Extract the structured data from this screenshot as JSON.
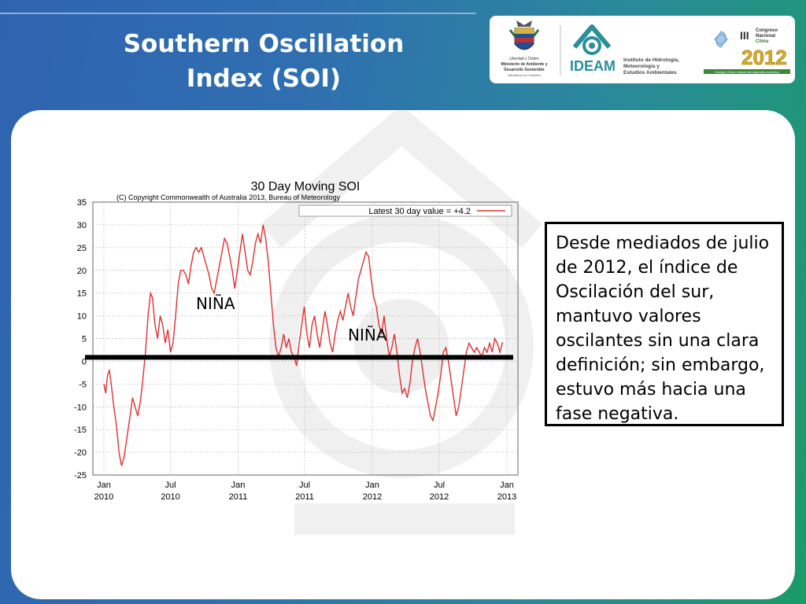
{
  "slide": {
    "title": "Southern Oscillation Index (SOI)",
    "body_text": "Desde mediados de julio de 2012, el índice de Oscilación del sur, mantuvo valores oscilantes sin una clara definición; sin embargo, estuvo más hacia una fase negativa.",
    "colors": {
      "gradient_left": "#2f63b0",
      "gradient_right": "#1b9a6a",
      "series_line": "#e03030",
      "zero_line": "#000000"
    }
  },
  "logos": {
    "ministry_lines": [
      "Libertad y Orden",
      "Ministerio de Ambiente y",
      "Desarrollo Sostenible",
      "República de Colombia"
    ],
    "ideam_name": "IDEAM",
    "ideam_full": [
      "Instituto de Hidrología,",
      "Meteorología y",
      "Estudios Ambientales"
    ],
    "congress_lines": [
      "Congreso",
      "Nacional",
      "Clima"
    ],
    "congress_roman": "III",
    "congress_year": "2012",
    "congress_tagline": "Energía y Clima: motores del desarrollo económico"
  },
  "chart_data": {
    "type": "line",
    "title": "30 Day Moving SOI",
    "subtitle": "(C) Copyright Commonwealth of Australia 2013, Bureau of Meteorology",
    "legend": {
      "label": "Latest 30 day value = +4.2",
      "placement": "top-right"
    },
    "xlabel": "",
    "ylabel": "",
    "ylim": [
      -25,
      35
    ],
    "yticks": [
      "35",
      "30",
      "25",
      "20",
      "15",
      "10",
      "5",
      "0",
      "-5",
      "-10",
      "-15",
      "-20",
      "-25"
    ],
    "xlim": [
      "2010-01-01",
      "2013-01-01"
    ],
    "xticks": [
      {
        "month": "Jan",
        "year": "2010",
        "date": "2010-01-01"
      },
      {
        "month": "Jul",
        "year": "2010",
        "date": "2010-07-01"
      },
      {
        "month": "Jan",
        "year": "2011",
        "date": "2011-01-01"
      },
      {
        "month": "Jul",
        "year": "2011",
        "date": "2011-07-01"
      },
      {
        "month": "Jan",
        "year": "2012",
        "date": "2012-01-01"
      },
      {
        "month": "Jul",
        "year": "2012",
        "date": "2012-07-01"
      },
      {
        "month": "Jan",
        "year": "2013",
        "date": "2013-01-01"
      }
    ],
    "grid": true,
    "annotations": [
      "NIÑA",
      "NIÑA"
    ],
    "reference_line_y": 0,
    "series": [
      {
        "name": "30 Day Moving SOI",
        "points": [
          [
            "2010-01-01",
            -5
          ],
          [
            "2010-01-06",
            -7
          ],
          [
            "2010-01-11",
            -3
          ],
          [
            "2010-01-16",
            -2
          ],
          [
            "2010-01-21",
            -5
          ],
          [
            "2010-01-28",
            -10
          ],
          [
            "2010-02-04",
            -14
          ],
          [
            "2010-02-11",
            -20
          ],
          [
            "2010-02-18",
            -23
          ],
          [
            "2010-02-25",
            -21
          ],
          [
            "2010-03-06",
            -16
          ],
          [
            "2010-03-13",
            -12
          ],
          [
            "2010-03-20",
            -8
          ],
          [
            "2010-03-27",
            -10
          ],
          [
            "2010-04-03",
            -12
          ],
          [
            "2010-04-10",
            -9
          ],
          [
            "2010-04-17",
            -4
          ],
          [
            "2010-04-24",
            2
          ],
          [
            "2010-05-01",
            10
          ],
          [
            "2010-05-08",
            15
          ],
          [
            "2010-05-13",
            14
          ],
          [
            "2010-05-20",
            8
          ],
          [
            "2010-05-27",
            5
          ],
          [
            "2010-06-03",
            10
          ],
          [
            "2010-06-10",
            8
          ],
          [
            "2010-06-17",
            4
          ],
          [
            "2010-06-24",
            7
          ],
          [
            "2010-07-01",
            2
          ],
          [
            "2010-07-08",
            4
          ],
          [
            "2010-07-15",
            10
          ],
          [
            "2010-07-22",
            17
          ],
          [
            "2010-07-29",
            20
          ],
          [
            "2010-08-05",
            20
          ],
          [
            "2010-08-12",
            19
          ],
          [
            "2010-08-19",
            17
          ],
          [
            "2010-08-26",
            21
          ],
          [
            "2010-09-02",
            24
          ],
          [
            "2010-09-09",
            25
          ],
          [
            "2010-09-16",
            24
          ],
          [
            "2010-09-23",
            25
          ],
          [
            "2010-09-30",
            23
          ],
          [
            "2010-10-07",
            21
          ],
          [
            "2010-10-14",
            19
          ],
          [
            "2010-10-21",
            16
          ],
          [
            "2010-10-28",
            15
          ],
          [
            "2010-11-04",
            18
          ],
          [
            "2010-11-11",
            21
          ],
          [
            "2010-11-18",
            24
          ],
          [
            "2010-11-25",
            27
          ],
          [
            "2010-12-02",
            26
          ],
          [
            "2010-12-09",
            23
          ],
          [
            "2010-12-16",
            20
          ],
          [
            "2010-12-23",
            16
          ],
          [
            "2010-12-30",
            20
          ],
          [
            "2011-01-06",
            24
          ],
          [
            "2011-01-13",
            28
          ],
          [
            "2011-01-20",
            24
          ],
          [
            "2011-01-27",
            20
          ],
          [
            "2011-02-03",
            19
          ],
          [
            "2011-02-10",
            22
          ],
          [
            "2011-02-17",
            26
          ],
          [
            "2011-02-24",
            28
          ],
          [
            "2011-03-03",
            26
          ],
          [
            "2011-03-10",
            30
          ],
          [
            "2011-03-17",
            27
          ],
          [
            "2011-03-24",
            22
          ],
          [
            "2011-03-31",
            15
          ],
          [
            "2011-04-07",
            8
          ],
          [
            "2011-04-14",
            3
          ],
          [
            "2011-04-21",
            1
          ],
          [
            "2011-04-28",
            3
          ],
          [
            "2011-05-05",
            6
          ],
          [
            "2011-05-12",
            3
          ],
          [
            "2011-05-19",
            5
          ],
          [
            "2011-05-26",
            2
          ],
          [
            "2011-06-02",
            1
          ],
          [
            "2011-06-09",
            -1
          ],
          [
            "2011-06-16",
            4
          ],
          [
            "2011-06-23",
            8
          ],
          [
            "2011-06-30",
            12
          ],
          [
            "2011-07-07",
            6
          ],
          [
            "2011-07-14",
            3
          ],
          [
            "2011-07-21",
            8
          ],
          [
            "2011-07-28",
            10
          ],
          [
            "2011-08-04",
            6
          ],
          [
            "2011-08-11",
            3
          ],
          [
            "2011-08-18",
            7
          ],
          [
            "2011-08-25",
            11
          ],
          [
            "2011-09-01",
            8
          ],
          [
            "2011-09-08",
            4
          ],
          [
            "2011-09-15",
            2
          ],
          [
            "2011-09-22",
            6
          ],
          [
            "2011-09-29",
            9
          ],
          [
            "2011-10-06",
            11
          ],
          [
            "2011-10-13",
            9
          ],
          [
            "2011-10-20",
            12
          ],
          [
            "2011-10-27",
            15
          ],
          [
            "2011-11-03",
            12
          ],
          [
            "2011-11-10",
            10
          ],
          [
            "2011-11-17",
            14
          ],
          [
            "2011-11-24",
            18
          ],
          [
            "2011-12-01",
            20
          ],
          [
            "2011-12-08",
            22
          ],
          [
            "2011-12-15",
            24
          ],
          [
            "2011-12-22",
            23
          ],
          [
            "2011-12-29",
            18
          ],
          [
            "2012-01-05",
            14
          ],
          [
            "2012-01-12",
            12
          ],
          [
            "2012-01-19",
            8
          ],
          [
            "2012-01-26",
            6
          ],
          [
            "2012-02-02",
            10
          ],
          [
            "2012-02-09",
            5
          ],
          [
            "2012-02-16",
            1
          ],
          [
            "2012-02-23",
            3
          ],
          [
            "2012-03-01",
            6
          ],
          [
            "2012-03-08",
            2
          ],
          [
            "2012-03-15",
            -3
          ],
          [
            "2012-03-22",
            -7
          ],
          [
            "2012-03-29",
            -6
          ],
          [
            "2012-04-05",
            -8
          ],
          [
            "2012-04-12",
            -5
          ],
          [
            "2012-04-19",
            0
          ],
          [
            "2012-04-26",
            3
          ],
          [
            "2012-05-03",
            5
          ],
          [
            "2012-05-10",
            2
          ],
          [
            "2012-05-17",
            -2
          ],
          [
            "2012-05-24",
            -6
          ],
          [
            "2012-05-31",
            -9
          ],
          [
            "2012-06-07",
            -12
          ],
          [
            "2012-06-14",
            -13
          ],
          [
            "2012-06-21",
            -10
          ],
          [
            "2012-06-28",
            -7
          ],
          [
            "2012-07-05",
            -3
          ],
          [
            "2012-07-12",
            2
          ],
          [
            "2012-07-19",
            3
          ],
          [
            "2012-07-26",
            0
          ],
          [
            "2012-08-02",
            -4
          ],
          [
            "2012-08-09",
            -8
          ],
          [
            "2012-08-16",
            -12
          ],
          [
            "2012-08-23",
            -10
          ],
          [
            "2012-08-30",
            -6
          ],
          [
            "2012-09-06",
            -2
          ],
          [
            "2012-09-13",
            2
          ],
          [
            "2012-09-20",
            4
          ],
          [
            "2012-09-27",
            3
          ],
          [
            "2012-10-04",
            2
          ],
          [
            "2012-10-11",
            3
          ],
          [
            "2012-10-18",
            2
          ],
          [
            "2012-10-25",
            1
          ],
          [
            "2012-11-01",
            3
          ],
          [
            "2012-11-08",
            2
          ],
          [
            "2012-11-15",
            4
          ],
          [
            "2012-11-22",
            2
          ],
          [
            "2012-11-29",
            5
          ],
          [
            "2012-12-06",
            4
          ],
          [
            "2012-12-13",
            2
          ],
          [
            "2012-12-20",
            4.2
          ]
        ]
      }
    ]
  }
}
